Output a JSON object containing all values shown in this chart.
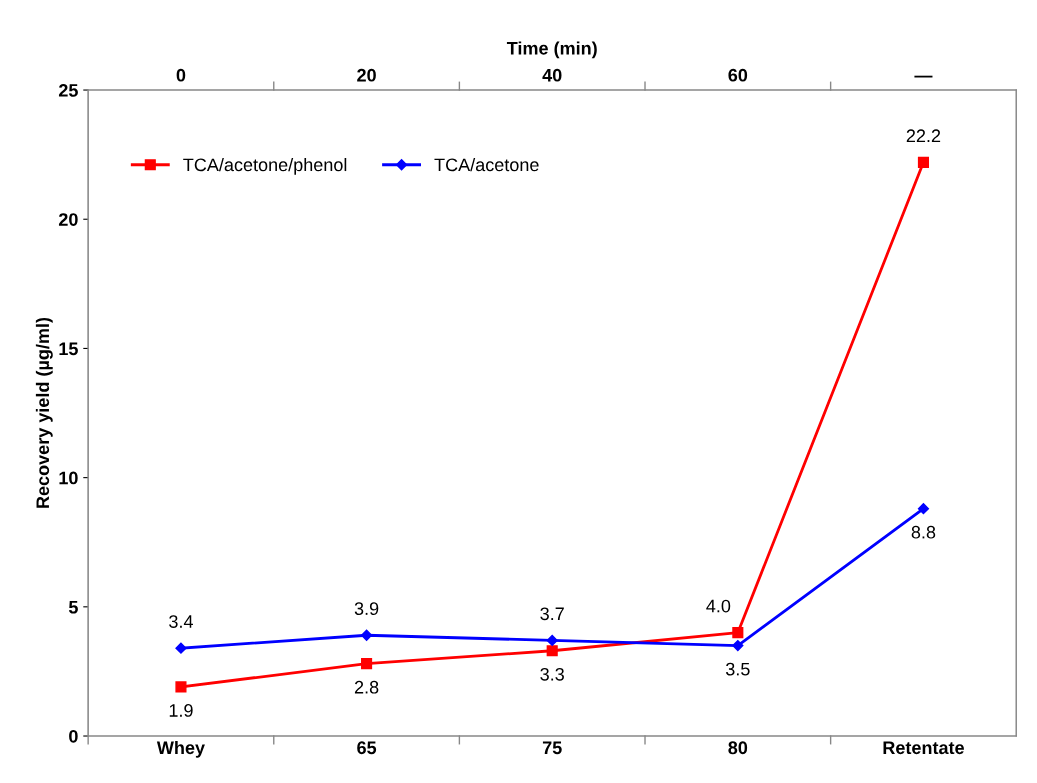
{
  "chart_data": {
    "type": "line",
    "xlabel": null,
    "x2label": "Time (min)",
    "ylabel": "Recovery yield (µg/ml)",
    "categories": [
      "Whey",
      "65",
      "75",
      "80",
      "Retentate"
    ],
    "x2lim": [
      -10,
      90
    ],
    "x2ticks": [
      0,
      20,
      40,
      60,
      {
        "value": 80,
        "label": "—"
      }
    ],
    "ylim": [
      0,
      25
    ],
    "yticks": [
      0,
      5,
      10,
      15,
      20,
      25
    ],
    "grid": false,
    "legend": "top left",
    "series": [
      {
        "name": "TCA/acetone/phenol",
        "color": "#ff0000",
        "marker": "square",
        "values": [
          1.9,
          2.8,
          3.3,
          4.0,
          22.2
        ],
        "value_labels": [
          "1.9",
          "2.8",
          "3.3",
          "4.0",
          "22.2"
        ]
      },
      {
        "name": "TCA/acetone",
        "color": "#0000ff",
        "marker": "diamond",
        "values": [
          3.4,
          3.9,
          3.7,
          3.5,
          8.8
        ],
        "value_labels": [
          "3.4",
          "3.9",
          "3.7",
          "3.5",
          "8.8"
        ]
      }
    ]
  }
}
